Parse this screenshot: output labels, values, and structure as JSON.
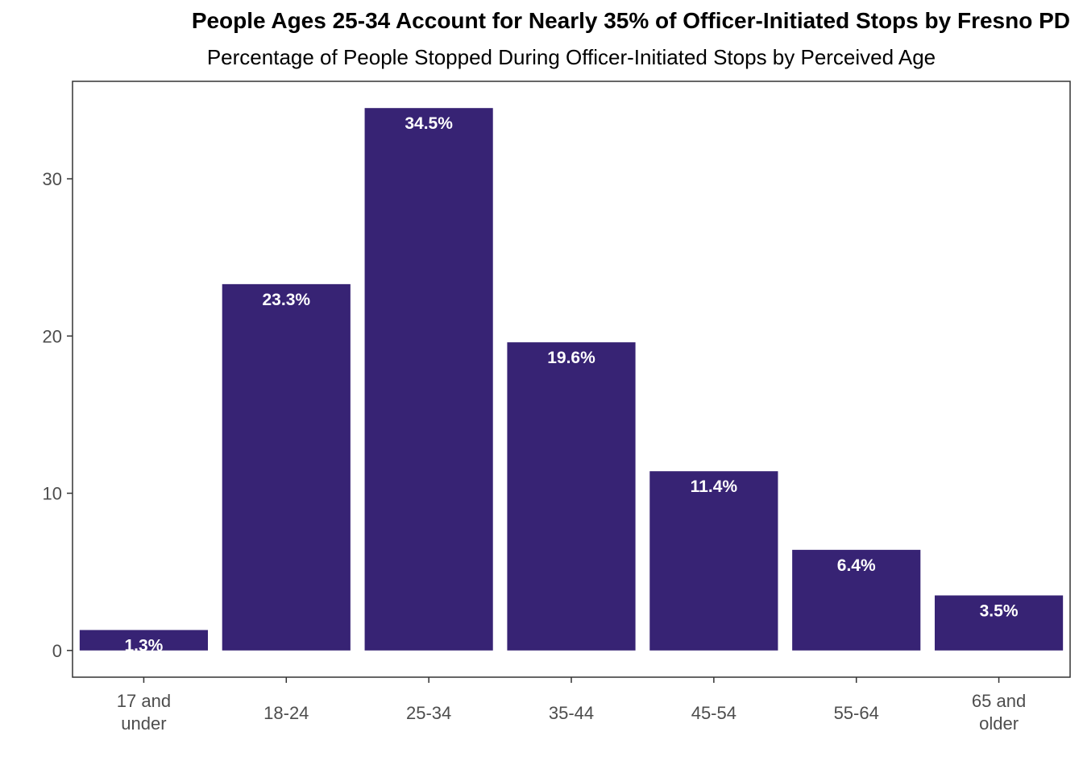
{
  "chart_data": {
    "type": "bar",
    "title": "People Ages 25-34 Account for Nearly 35% of Officer-Initiated Stops by Fresno PD",
    "subtitle": "Percentage of People Stopped During Officer-Initiated Stops by Perceived Age",
    "xlabel": "",
    "ylabel": "",
    "categories": [
      "17 and under",
      "18-24",
      "25-34",
      "35-44",
      "45-54",
      "55-64",
      "65 and older"
    ],
    "category_lines": [
      [
        "17 and",
        "under"
      ],
      [
        "18-24"
      ],
      [
        "25-34"
      ],
      [
        "35-44"
      ],
      [
        "45-54"
      ],
      [
        "55-64"
      ],
      [
        "65 and",
        "older"
      ]
    ],
    "values": [
      1.3,
      23.3,
      34.5,
      19.6,
      11.4,
      6.4,
      3.5
    ],
    "data_labels": [
      "1.3%",
      "23.3%",
      "34.5%",
      "19.6%",
      "11.4%",
      "6.4%",
      "3.5%"
    ],
    "yticks": [
      0,
      10,
      20,
      30
    ],
    "ylim": [
      -1.7,
      36.2
    ],
    "grid": false,
    "legend": "none",
    "bar_color": "#372374",
    "axis_color": "#333333"
  }
}
